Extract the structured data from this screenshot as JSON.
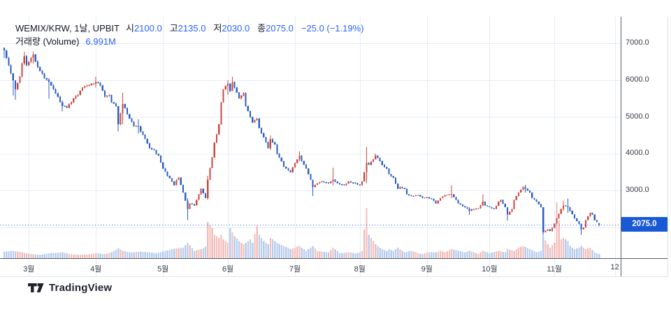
{
  "header": {
    "title": "WEMIX/KRW, 1날, UPBIT",
    "ohlc": [
      {
        "key": "open",
        "label": "시",
        "value": "2100.0"
      },
      {
        "key": "high",
        "label": "고",
        "value": "2135.0"
      },
      {
        "key": "low",
        "label": "저",
        "value": "2030.0"
      },
      {
        "key": "close",
        "label": "종",
        "value": "2075.0"
      }
    ],
    "change": "−25.0 (−1.19%)",
    "volume_label": "거래량 (Volume)",
    "volume_value": "6.991M"
  },
  "price_label": "2075.0",
  "footer": {
    "logo_text": "TradingView"
  },
  "colors": {
    "accent": "#2962FF",
    "badge_bg": "#1a59d6",
    "candle_up": "#d0473e",
    "candle_down": "#2b5cc4",
    "volume_up": "#f3bcb9",
    "volume_down": "#b6cbec",
    "text_dark": "#131722",
    "axis_text": "#363a45",
    "grid": "#e6ecf4",
    "axis_line": "#555a64",
    "border_light": "#e0e3eb",
    "logo_color": "#1e222d",
    "price_line": "#2962FF"
  },
  "chart_data": {
    "type": "candlestick",
    "symbol": "WEMIX/KRW",
    "interval": "1날",
    "exchange": "UPBIT",
    "last": {
      "open": 2100.0,
      "high": 2135.0,
      "low": 2030.0,
      "close": 2075.0,
      "change": -25.0,
      "change_pct": -1.19,
      "volume": "6.991M"
    },
    "price_line": 2075.0,
    "volume_unit": "M",
    "y_axis": {
      "ticks": [
        {
          "value": 7000,
          "label": "7000.0"
        },
        {
          "value": 6000,
          "label": "6000.0"
        },
        {
          "value": 5000,
          "label": "5000.0"
        },
        {
          "value": 4000,
          "label": "4000.0"
        },
        {
          "value": 3000,
          "label": "3000.0"
        },
        {
          "value": 2000,
          "label": ""
        }
      ],
      "range_top": 7400,
      "range_bottom": 1600
    },
    "x_axis": {
      "months": [
        {
          "label": "3월",
          "i": 11
        },
        {
          "label": "4월",
          "i": 41
        },
        {
          "label": "5월",
          "i": 71
        },
        {
          "label": "6월",
          "i": 100
        },
        {
          "label": "7월",
          "i": 130
        },
        {
          "label": "8월",
          "i": 159
        },
        {
          "label": "9월",
          "i": 189
        },
        {
          "label": "10월",
          "i": 217
        },
        {
          "label": "11월",
          "i": 246
        },
        {
          "label": "12",
          "i": 273
        }
      ]
    },
    "candle_count": 267,
    "first_open": 6880,
    "close_anchors": [
      [
        0,
        6800
      ],
      [
        2,
        6400
      ],
      [
        4,
        6000
      ],
      [
        5,
        5750
      ],
      [
        7,
        6100
      ],
      [
        8,
        6450
      ],
      [
        9,
        6650
      ],
      [
        10,
        6400
      ],
      [
        12,
        6600
      ],
      [
        13,
        6700
      ],
      [
        14,
        6500
      ],
      [
        16,
        6250
      ],
      [
        18,
        6050
      ],
      [
        20,
        5950
      ],
      [
        22,
        5750
      ],
      [
        24,
        5550
      ],
      [
        26,
        5300
      ],
      [
        28,
        5250
      ],
      [
        31,
        5500
      ],
      [
        33,
        5600
      ],
      [
        35,
        5800
      ],
      [
        37,
        5850
      ],
      [
        39,
        5900
      ],
      [
        41,
        5950
      ],
      [
        43,
        5850
      ],
      [
        45,
        5550
      ],
      [
        47,
        5600
      ],
      [
        48,
        5400
      ],
      [
        50,
        5300
      ],
      [
        51,
        4800
      ],
      [
        53,
        5350
      ],
      [
        54,
        5250
      ],
      [
        56,
        4950
      ],
      [
        58,
        4750
      ],
      [
        60,
        4750
      ],
      [
        61,
        4600
      ],
      [
        63,
        4400
      ],
      [
        65,
        4150
      ],
      [
        67,
        4100
      ],
      [
        68,
        4000
      ],
      [
        69,
        3950
      ],
      [
        71,
        3600
      ],
      [
        73,
        3400
      ],
      [
        75,
        3250
      ],
      [
        76,
        3150
      ],
      [
        77,
        3300
      ],
      [
        78,
        3350
      ],
      [
        80,
        2950
      ],
      [
        82,
        2500
      ],
      [
        83,
        2650
      ],
      [
        85,
        2600
      ],
      [
        87,
        2900
      ],
      [
        88,
        3050
      ],
      [
        90,
        2800
      ],
      [
        91,
        3300
      ],
      [
        93,
        3900
      ],
      [
        94,
        4300
      ],
      [
        96,
        4800
      ],
      [
        97,
        5400
      ],
      [
        98,
        5750
      ],
      [
        100,
        5900
      ],
      [
        101,
        5700
      ],
      [
        102,
        5950
      ],
      [
        103,
        5800
      ],
      [
        105,
        5500
      ],
      [
        107,
        5650
      ],
      [
        108,
        5300
      ],
      [
        110,
        5000
      ],
      [
        111,
        4850
      ],
      [
        113,
        4950
      ],
      [
        114,
        4700
      ],
      [
        116,
        4450
      ],
      [
        118,
        4150
      ],
      [
        119,
        4400
      ],
      [
        121,
        4250
      ],
      [
        122,
        4000
      ],
      [
        124,
        3800
      ],
      [
        125,
        3650
      ],
      [
        127,
        3550
      ],
      [
        128,
        3500
      ],
      [
        130,
        3750
      ],
      [
        132,
        3950
      ],
      [
        133,
        3800
      ],
      [
        135,
        3600
      ],
      [
        137,
        3300
      ],
      [
        138,
        3100
      ],
      [
        140,
        3200
      ],
      [
        142,
        3250
      ],
      [
        145,
        3200
      ],
      [
        147,
        3300
      ],
      [
        149,
        3200
      ],
      [
        152,
        3150
      ],
      [
        154,
        3250
      ],
      [
        157,
        3200
      ],
      [
        159,
        3150
      ],
      [
        160,
        3250
      ],
      [
        162,
        3750
      ],
      [
        163,
        3700
      ],
      [
        165,
        3850
      ],
      [
        166,
        3950
      ],
      [
        168,
        3800
      ],
      [
        169,
        3700
      ],
      [
        171,
        3600
      ],
      [
        172,
        3450
      ],
      [
        174,
        3350
      ],
      [
        176,
        3050
      ],
      [
        177,
        3100
      ],
      [
        179,
        3050
      ],
      [
        180,
        2900
      ],
      [
        182,
        2850
      ],
      [
        185,
        2880
      ],
      [
        187,
        2800
      ],
      [
        189,
        2820
      ],
      [
        191,
        2780
      ],
      [
        193,
        2650
      ],
      [
        195,
        2800
      ],
      [
        197,
        2880
      ],
      [
        200,
        2900
      ],
      [
        202,
        2750
      ],
      [
        203,
        2650
      ],
      [
        206,
        2550
      ],
      [
        208,
        2450
      ],
      [
        209,
        2500
      ],
      [
        212,
        2520
      ],
      [
        214,
        2700
      ],
      [
        215,
        2600
      ],
      [
        217,
        2550
      ],
      [
        219,
        2500
      ],
      [
        221,
        2700
      ],
      [
        222,
        2750
      ],
      [
        224,
        2550
      ],
      [
        225,
        2350
      ],
      [
        227,
        2500
      ],
      [
        228,
        2750
      ],
      [
        230,
        2950
      ],
      [
        232,
        3100
      ],
      [
        233,
        3050
      ],
      [
        235,
        2950
      ],
      [
        236,
        2800
      ],
      [
        238,
        2700
      ],
      [
        240,
        2550
      ],
      [
        241,
        1870
      ],
      [
        243,
        1950
      ],
      [
        244,
        1900
      ],
      [
        246,
        2100
      ],
      [
        247,
        2250
      ],
      [
        249,
        2500
      ],
      [
        250,
        2600
      ],
      [
        252,
        2550
      ],
      [
        253,
        2450
      ],
      [
        255,
        2250
      ],
      [
        257,
        2100
      ],
      [
        258,
        1950
      ],
      [
        259,
        2000
      ],
      [
        260,
        2200
      ],
      [
        262,
        2400
      ],
      [
        263,
        2350
      ],
      [
        264,
        2200
      ],
      [
        265,
        2150
      ],
      [
        266,
        2075
      ]
    ],
    "wick_overrides": {
      "0": [
        6890,
        6600
      ],
      "4": [
        6150,
        5580
      ],
      "5": [
        5900,
        5470
      ],
      "9": [
        6770,
        6400
      ],
      "13": [
        6770,
        6450
      ],
      "20": [
        6050,
        5490
      ],
      "26": [
        5450,
        5150
      ],
      "41": [
        6090,
        5800
      ],
      "51": [
        5000,
        4600
      ],
      "53": [
        5660,
        4800
      ],
      "60": [
        4940,
        4550
      ],
      "82": [
        2800,
        2200
      ],
      "91": [
        3400,
        2750
      ],
      "100": [
        6000,
        5600
      ],
      "102": [
        6090,
        5700
      ],
      "119": [
        4500,
        4100
      ],
      "132": [
        4060,
        3800
      ],
      "138": [
        3250,
        2850
      ],
      "147": [
        3620,
        3150
      ],
      "162": [
        4190,
        3200
      ],
      "166": [
        4010,
        3850
      ],
      "200": [
        3150,
        2800
      ],
      "208": [
        2550,
        2340
      ],
      "214": [
        2900,
        2580
      ],
      "225": [
        2500,
        2190
      ],
      "233": [
        3160,
        2950
      ],
      "241": [
        2520,
        1780
      ],
      "250": [
        2730,
        2450
      ],
      "252": [
        2790,
        2400
      ],
      "258": [
        2100,
        1800
      ],
      "266": [
        2135,
        2030
      ]
    },
    "volume_anchors": [
      [
        0,
        9
      ],
      [
        4,
        10
      ],
      [
        8,
        8
      ],
      [
        12,
        6
      ],
      [
        16,
        5
      ],
      [
        20,
        7
      ],
      [
        26,
        8
      ],
      [
        31,
        5
      ],
      [
        36,
        5
      ],
      [
        41,
        7
      ],
      [
        45,
        6
      ],
      [
        48,
        8
      ],
      [
        51,
        13
      ],
      [
        53,
        10
      ],
      [
        56,
        8
      ],
      [
        61,
        9
      ],
      [
        65,
        8
      ],
      [
        68,
        7
      ],
      [
        71,
        9
      ],
      [
        75,
        12
      ],
      [
        80,
        14
      ],
      [
        82,
        20
      ],
      [
        85,
        10
      ],
      [
        88,
        12
      ],
      [
        90,
        15
      ],
      [
        91,
        46
      ],
      [
        93,
        38
      ],
      [
        94,
        30
      ],
      [
        96,
        26
      ],
      [
        97,
        30
      ],
      [
        98,
        24
      ],
      [
        100,
        20
      ],
      [
        101,
        38
      ],
      [
        103,
        28
      ],
      [
        105,
        22
      ],
      [
        107,
        18
      ],
      [
        110,
        24
      ],
      [
        111,
        20
      ],
      [
        113,
        41
      ],
      [
        114,
        30
      ],
      [
        116,
        22
      ],
      [
        118,
        18
      ],
      [
        119,
        26
      ],
      [
        122,
        20
      ],
      [
        125,
        16
      ],
      [
        128,
        12
      ],
      [
        130,
        14
      ],
      [
        132,
        16
      ],
      [
        135,
        10
      ],
      [
        138,
        16
      ],
      [
        140,
        10
      ],
      [
        145,
        8
      ],
      [
        147,
        14
      ],
      [
        150,
        7
      ],
      [
        154,
        8
      ],
      [
        157,
        7
      ],
      [
        159,
        8
      ],
      [
        160,
        10
      ],
      [
        162,
        63
      ],
      [
        163,
        30
      ],
      [
        165,
        22
      ],
      [
        166,
        18
      ],
      [
        168,
        14
      ],
      [
        169,
        12
      ],
      [
        171,
        10
      ],
      [
        172,
        12
      ],
      [
        174,
        10
      ],
      [
        176,
        14
      ],
      [
        179,
        8
      ],
      [
        182,
        10
      ],
      [
        185,
        7
      ],
      [
        187,
        6
      ],
      [
        189,
        8
      ],
      [
        193,
        8
      ],
      [
        195,
        10
      ],
      [
        197,
        8
      ],
      [
        200,
        12
      ],
      [
        203,
        10
      ],
      [
        206,
        8
      ],
      [
        208,
        10
      ],
      [
        212,
        6
      ],
      [
        214,
        10
      ],
      [
        217,
        7
      ],
      [
        221,
        10
      ],
      [
        224,
        8
      ],
      [
        225,
        12
      ],
      [
        228,
        10
      ],
      [
        230,
        14
      ],
      [
        232,
        16
      ],
      [
        235,
        12
      ],
      [
        238,
        8
      ],
      [
        240,
        10
      ],
      [
        241,
        28
      ],
      [
        243,
        18
      ],
      [
        244,
        14
      ],
      [
        246,
        20
      ],
      [
        247,
        70
      ],
      [
        249,
        24
      ],
      [
        250,
        26
      ],
      [
        252,
        22
      ],
      [
        253,
        16
      ],
      [
        255,
        12
      ],
      [
        257,
        14
      ],
      [
        258,
        16
      ],
      [
        260,
        12
      ],
      [
        262,
        14
      ],
      [
        264,
        8
      ],
      [
        266,
        6
      ]
    ]
  }
}
